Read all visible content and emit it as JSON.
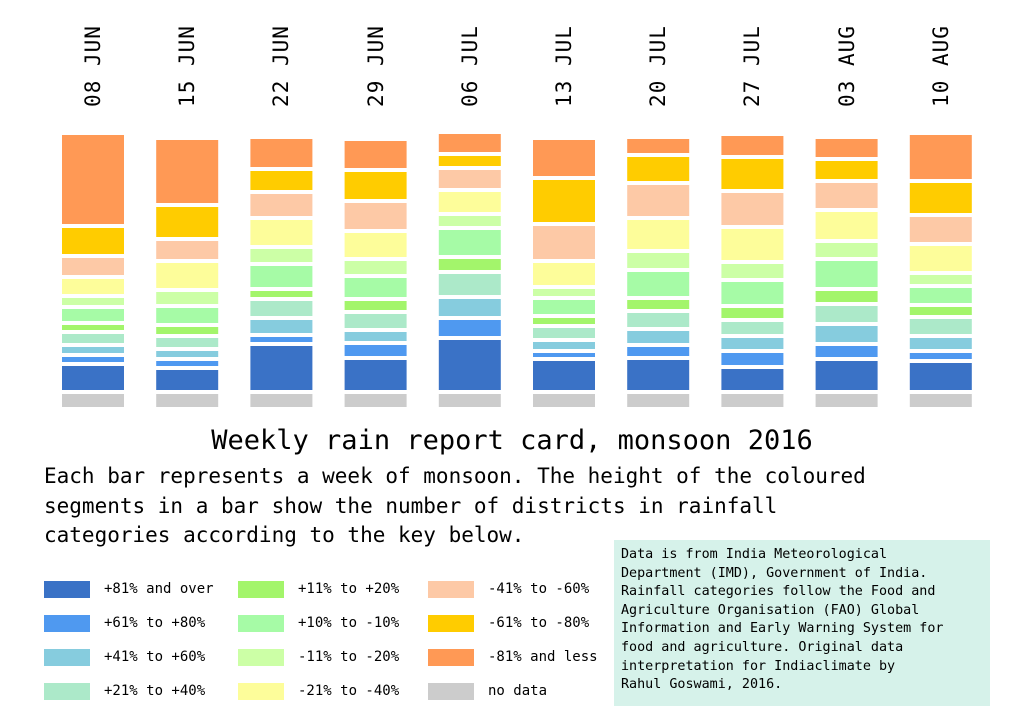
{
  "chart_data": {
    "type": "bar",
    "title": "Weekly rain report card, monsoon 2016",
    "subtitle": "Each bar represents a week of monsoon. The height of the coloured\nsegments in a bar show the number of districts in rainfall\ncategories according to the key below.",
    "categories": [
      "08 JUN",
      "15 JUN",
      "22 JUN",
      "29 JUN",
      "06 JUL",
      "13 JUL",
      "20 JUL",
      "27 JUL",
      "03 AUG",
      "10 AUG"
    ],
    "series": [
      {
        "name": "+81% and over",
        "color": "#3a72c6",
        "values": [
          24,
          20,
          44,
          30,
          50,
          29,
          30,
          21,
          29,
          27
        ]
      },
      {
        "name": "+61% to +80%",
        "color": "#4f99f0",
        "values": [
          5,
          5,
          5,
          11,
          16,
          4,
          9,
          12,
          11,
          6
        ]
      },
      {
        "name": "+41% to +60%",
        "color": "#86ccde",
        "values": [
          6,
          6,
          13,
          9,
          17,
          7,
          12,
          11,
          16,
          11
        ]
      },
      {
        "name": "+21% to +40%",
        "color": "#ace9c9",
        "values": [
          9,
          9,
          15,
          14,
          21,
          10,
          14,
          12,
          16,
          15
        ]
      },
      {
        "name": "+11% to +20%",
        "color": "#a3f56b",
        "values": [
          5,
          7,
          6,
          9,
          11,
          6,
          9,
          10,
          11,
          8
        ]
      },
      {
        "name": "+10% to -10%",
        "color": "#a6fba6",
        "values": [
          12,
          15,
          21,
          19,
          25,
          14,
          24,
          22,
          26,
          15
        ]
      },
      {
        "name": "-11% to -20%",
        "color": "#ccffa6",
        "values": [
          7,
          12,
          13,
          13,
          10,
          7,
          15,
          14,
          14,
          9
        ]
      },
      {
        "name": "-21% to -40%",
        "color": "#fdfd9a",
        "values": [
          15,
          25,
          25,
          24,
          20,
          22,
          29,
          31,
          27,
          25
        ]
      },
      {
        "name": "-41% to -60%",
        "color": "#fdc9a6",
        "values": [
          17,
          18,
          22,
          26,
          18,
          33,
          31,
          32,
          25,
          25
        ]
      },
      {
        "name": "-61% to -80%",
        "color": "#ffcc00",
        "values": [
          26,
          30,
          19,
          27,
          10,
          42,
          24,
          30,
          18,
          30
        ]
      },
      {
        "name": "-81% and less",
        "color": "#ff9955",
        "values": [
          89,
          63,
          28,
          27,
          18,
          36,
          14,
          19,
          18,
          44
        ]
      },
      {
        "name": "no data",
        "color": "#cccccc",
        "values": [
          13,
          13,
          13,
          13,
          13,
          13,
          13,
          13,
          13,
          13
        ]
      }
    ]
  },
  "key": [
    {
      "label": "+81% and over",
      "color": "#3a72c6"
    },
    {
      "label": "+61% to +80%",
      "color": "#4f99f0"
    },
    {
      "label": "+41% to +60%",
      "color": "#86ccde"
    },
    {
      "label": "+21% to +40%",
      "color": "#ace9c9"
    },
    {
      "label": "+11% to +20%",
      "color": "#a3f56b"
    },
    {
      "label": "+10% to -10%",
      "color": "#a6fba6"
    },
    {
      "label": "-11% to -20%",
      "color": "#ccffa6"
    },
    {
      "label": "-21% to -40%",
      "color": "#fdfd9a"
    },
    {
      "label": "-41% to -60%",
      "color": "#fdc9a6"
    },
    {
      "label": "-61% to -80%",
      "color": "#ffcc00"
    },
    {
      "label": "-81% and less",
      "color": "#ff9955"
    },
    {
      "label": "no data",
      "color": "#cccccc"
    }
  ],
  "source_note": "Data is from India Meteorological\nDepartment (IMD), Government of India.\nRainfall categories follow the Food and\nAgriculture Organisation (FAO) Global\nInformation and Early Warning System for\nfood and agriculture. Original data\ninterpretation for Indiaclimate by\nRahul Goswami, 2016.",
  "colors": {
    "source_box_background": "#d6f2ea"
  }
}
